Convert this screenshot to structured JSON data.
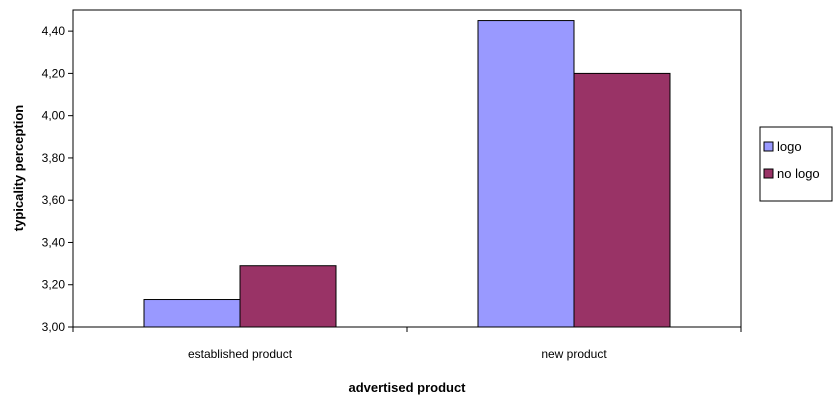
{
  "chart_data": {
    "type": "bar",
    "title": "",
    "xlabel": "advertised product",
    "ylabel": "typicality perception",
    "categories": [
      "established product",
      "new product"
    ],
    "series": [
      {
        "name": "logo",
        "values": [
          3.13,
          4.45
        ],
        "color": "#9999ff"
      },
      {
        "name": "no logo",
        "values": [
          3.29,
          4.2
        ],
        "color": "#993366"
      }
    ],
    "ylim": [
      3.0,
      4.5
    ],
    "yticks": [
      3.0,
      3.2,
      3.4,
      3.6,
      3.8,
      4.0,
      4.2,
      4.4
    ],
    "ytick_labels": [
      "3,00",
      "3,20",
      "3,40",
      "3,60",
      "3,80",
      "4,00",
      "4,20",
      "4,40"
    ],
    "grid": false,
    "legend_position": "right"
  }
}
